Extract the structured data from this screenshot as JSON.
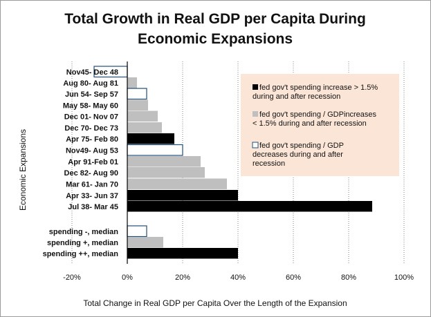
{
  "chart_data": {
    "type": "bar",
    "orientation": "horizontal",
    "title": "Total Growth in Real GDP per Capita During Economic Expansions",
    "title_lines": [
      "Total Growth in Real GDP per Capita During",
      "Economic Expansions"
    ],
    "xlabel": "Total Change in Real GDP per Capita Over the Length of the Expansion",
    "ylabel": "Economic Expansions",
    "xlim": [
      -20,
      100
    ],
    "x_ticks": [
      "-20%",
      "0%",
      "20%",
      "40%",
      "60%",
      "80%",
      "100%"
    ],
    "x_tick_values": [
      -20,
      0,
      20,
      40,
      60,
      80,
      100
    ],
    "grid": "vertical dotted",
    "legend_position": "right",
    "groups": [
      {
        "name": "expansions",
        "items": [
          {
            "label": "Nov45- Dec 48",
            "value": -12,
            "category": "decrease"
          },
          {
            "label": "Aug 80- Aug 81",
            "value": 3.5,
            "category": "increase_small"
          },
          {
            "label": "Jun 54- Sep 57",
            "value": 7,
            "category": "decrease"
          },
          {
            "label": "May 58- May 60",
            "value": 7.5,
            "category": "increase_small"
          },
          {
            "label": "Dec 01- Nov 07",
            "value": 11,
            "category": "increase_small"
          },
          {
            "label": "Dec 70- Dec 73",
            "value": 12.5,
            "category": "increase_small"
          },
          {
            "label": "Apr 75- Feb 80",
            "value": 17,
            "category": "increase_large"
          },
          {
            "label": "Nov49- Aug 53",
            "value": 20,
            "category": "decrease"
          },
          {
            "label": "Apr 91-Feb 01",
            "value": 26.5,
            "category": "increase_small"
          },
          {
            "label": "Dec 82- Aug 90",
            "value": 28,
            "category": "increase_small"
          },
          {
            "label": "Mar 61- Jan 70",
            "value": 36,
            "category": "increase_small"
          },
          {
            "label": "Apr 33- Jun 37",
            "value": 40,
            "category": "increase_large"
          },
          {
            "label": "Jul 38- Mar 45",
            "value": 88.5,
            "category": "increase_large"
          }
        ]
      },
      {
        "name": "medians",
        "items": [
          {
            "label": "spending -, median",
            "value": 7,
            "category": "decrease"
          },
          {
            "label": "spending +, median",
            "value": 13,
            "category": "increase_small"
          },
          {
            "label": "spending ++, median",
            "value": 40,
            "category": "increase_large"
          }
        ]
      }
    ],
    "legend": [
      {
        "key": "increase_large",
        "text_lines": [
          "fed gov't spending increase > 1.5%",
          "during and after recession"
        ]
      },
      {
        "key": "increase_small",
        "text_lines": [
          "fed gov't spending / GDPincreases",
          "< 1.5% during and after recession"
        ]
      },
      {
        "key": "decrease",
        "text_lines": [
          "fed gov't spending / GDP",
          "decreases during and after",
          "recession"
        ]
      }
    ],
    "colors": {
      "increase_large": "#000000",
      "increase_small": "#bfbfbf",
      "decrease": "#ffffff",
      "decrease_border": "#1f4e79",
      "legend_background": "#fbe5d6",
      "grid": "#808080"
    }
  }
}
